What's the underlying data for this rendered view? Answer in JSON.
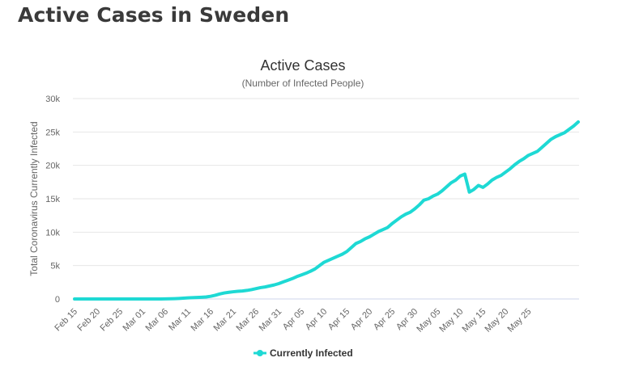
{
  "page": {
    "heading": "Active Cases in Sweden"
  },
  "chart_data": {
    "type": "line",
    "title": "Active Cases",
    "subtitle": "(Number of Infected People)",
    "xlabel": "",
    "ylabel": "Total Coronavirus Currently Infected",
    "ylim": [
      0,
      30000
    ],
    "yticks": [
      0,
      5000,
      10000,
      15000,
      20000,
      25000,
      30000
    ],
    "ytick_labels": [
      "0",
      "5k",
      "10k",
      "15k",
      "20k",
      "25k",
      "30k"
    ],
    "xtick_labels": [
      "Feb 15",
      "Feb 20",
      "Feb 25",
      "Mar 01",
      "Mar 06",
      "Mar 11",
      "Mar 16",
      "Mar 21",
      "Mar 26",
      "Mar 31",
      "Apr 05",
      "Apr 10",
      "Apr 15",
      "Apr 20",
      "Apr 25",
      "Apr 30",
      "May 05",
      "May 10",
      "May 15",
      "May 20",
      "May 25"
    ],
    "xtick_every_days": 5,
    "grid": true,
    "legend_position": "bottom-center",
    "series": [
      {
        "name": "Currently Infected",
        "color": "#1ed9d4",
        "values": [
          0,
          0,
          0,
          0,
          0,
          0,
          0,
          0,
          0,
          0,
          0,
          0,
          0,
          0,
          0,
          0,
          0,
          0,
          0,
          0,
          20,
          30,
          50,
          80,
          120,
          160,
          200,
          230,
          260,
          300,
          400,
          550,
          750,
          900,
          1000,
          1080,
          1150,
          1200,
          1280,
          1400,
          1550,
          1700,
          1800,
          1950,
          2100,
          2300,
          2550,
          2800,
          3050,
          3350,
          3600,
          3850,
          4150,
          4500,
          5000,
          5500,
          5800,
          6100,
          6400,
          6700,
          7100,
          7700,
          8300,
          8600,
          9000,
          9300,
          9700,
          10100,
          10400,
          10700,
          11300,
          11800,
          12300,
          12700,
          13000,
          13500,
          14100,
          14800,
          15000,
          15400,
          15700,
          16200,
          16800,
          17400,
          17800,
          18400,
          18700,
          16000,
          16400,
          17000,
          16700,
          17200,
          17800,
          18200,
          18500,
          19000,
          19500,
          20100,
          20600,
          21000,
          21500,
          21800,
          22100,
          22700,
          23300,
          23900,
          24300,
          24600,
          24900,
          25400,
          25900,
          26500
        ]
      }
    ]
  }
}
